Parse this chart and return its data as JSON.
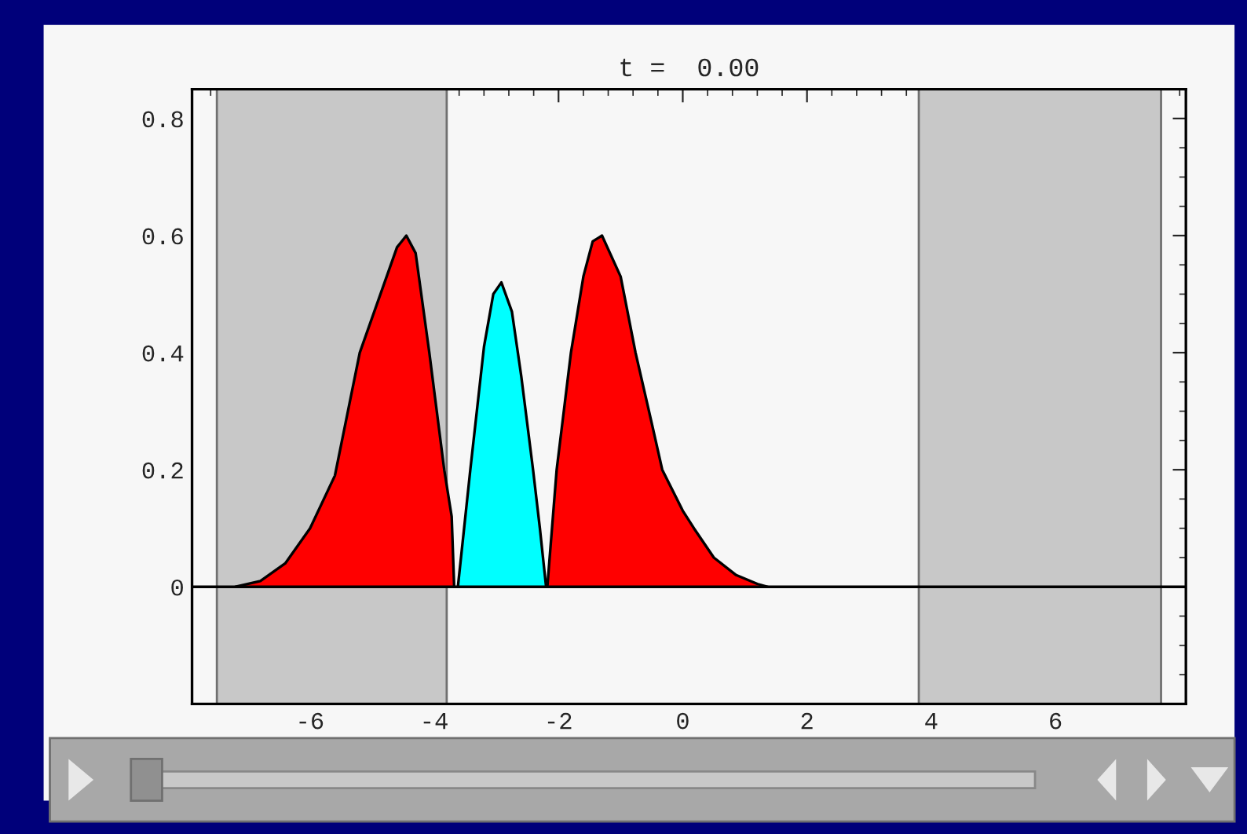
{
  "chart_data": {
    "type": "area",
    "title": "t =  0.00",
    "xlim": [
      -7.9,
      8.1
    ],
    "xticks": [
      -6,
      -4,
      -2,
      0,
      2,
      4,
      6
    ],
    "ylim": [
      -0.2,
      0.85
    ],
    "yticks": [
      0,
      0.2,
      0.4,
      0.6,
      0.8
    ],
    "bands": [
      {
        "axis": "x",
        "from": -7.5,
        "to": -3.8,
        "color": "#c8c8c8"
      },
      {
        "axis": "x",
        "from": 3.8,
        "to": 7.7,
        "color": "#c8c8c8"
      }
    ],
    "ref_lines": [
      {
        "axis": "y",
        "value": 0,
        "color": "#000000"
      }
    ],
    "series": [
      {
        "color": "#ff0000",
        "x": [
          -7.2,
          -6.8,
          -6.4,
          -6.0,
          -5.6,
          -5.2,
          -4.8,
          -4.6,
          -4.45,
          -4.3,
          -4.08,
          -3.84,
          -3.72,
          -3.68
        ],
        "values": [
          0.0,
          0.01,
          0.04,
          0.1,
          0.19,
          0.4,
          0.52,
          0.58,
          0.6,
          0.57,
          0.4,
          0.2,
          0.12,
          0.0
        ]
      },
      {
        "color": "#00ffff",
        "x": [
          -3.62,
          -3.5,
          -3.42,
          -3.2,
          -3.05,
          -2.92,
          -2.75,
          -2.6,
          -2.41,
          -2.3,
          -2.2
        ],
        "values": [
          0.0,
          0.12,
          0.2,
          0.41,
          0.5,
          0.52,
          0.47,
          0.36,
          0.2,
          0.1,
          0.0
        ]
      },
      {
        "color": "#ff0000",
        "x": [
          -2.18,
          -2.03,
          -1.8,
          -1.6,
          -1.45,
          -1.3,
          -1.0,
          -0.76,
          -0.5,
          -0.33,
          0.0,
          0.18,
          0.5,
          0.86,
          1.2,
          1.37
        ],
        "values": [
          0.0,
          0.2,
          0.4,
          0.53,
          0.59,
          0.6,
          0.53,
          0.4,
          0.28,
          0.2,
          0.13,
          0.1,
          0.05,
          0.02,
          0.005,
          0.0
        ]
      }
    ]
  }
}
